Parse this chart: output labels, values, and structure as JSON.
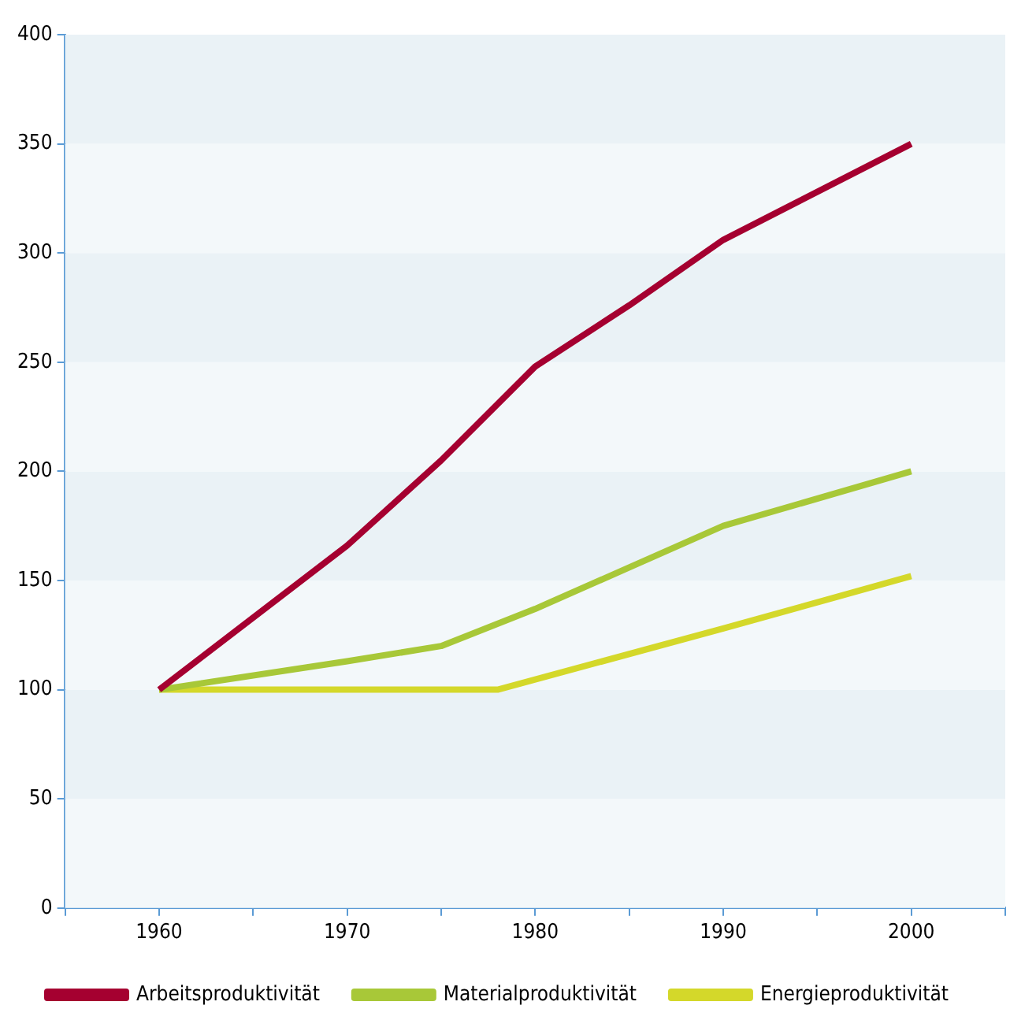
{
  "chart_data": {
    "type": "line",
    "x": [
      1960,
      1970,
      1975,
      1980,
      1985,
      1990,
      2000
    ],
    "series": [
      {
        "name": "Arbeitsproduktivität",
        "color": "#a50030",
        "values": [
          100,
          166,
          205,
          248,
          276,
          306,
          350
        ]
      },
      {
        "name": "Materialproduktivität",
        "color": "#a8c838",
        "values": [
          100,
          113,
          120,
          137,
          156,
          175,
          200
        ]
      },
      {
        "name": "Energieproduktivität",
        "color": "#d4d82a",
        "x": [
          1960,
          1978,
          1990,
          2000
        ],
        "values": [
          100,
          100,
          128,
          152
        ]
      }
    ],
    "xlim": [
      1955,
      2005
    ],
    "xticks": [
      {
        "value": 1955,
        "label": null
      },
      1960,
      {
        "value": 1965,
        "label": null
      },
      1970,
      {
        "value": 1975,
        "label": null
      },
      1980,
      {
        "value": 1985,
        "label": null
      },
      1990,
      {
        "value": 1995,
        "label": null
      },
      2000,
      {
        "value": 2005,
        "label": null
      }
    ],
    "ylim": [
      0,
      400
    ],
    "yticks": [
      0,
      50,
      100,
      150,
      200,
      250,
      300,
      350,
      400
    ],
    "legend": "bottom",
    "marker": "none",
    "line_style": "solid"
  }
}
